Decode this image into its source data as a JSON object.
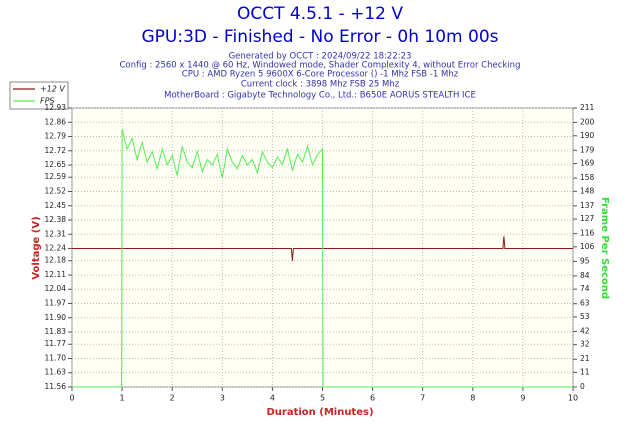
{
  "chart_data": {
    "type": "line",
    "title": "OCCT 4.5.1 - +12 V",
    "subtitle": "GPU:3D - Finished - No Error - 0h 10m 00s",
    "info": [
      "Generated by OCCT : 2024/09/22 18:22:23",
      "Config : 2560 x 1440 @ 60 Hz, Windowed mode, Shader Complexity 4, without Error Checking",
      "CPU : AMD Ryzen 5 9600X 6-Core Processor () -1 Mhz FSB -1 Mhz",
      "Current clock : 3898 Mhz FSB 25 Mhz",
      "MotherBoard : Gigabyte Technology Co., Ltd.: B650E AORUS STEALTH ICE"
    ],
    "xlabel": "Duration (Minutes)",
    "ylabel": "Voltage (V)",
    "y2label": "Frame Per Second",
    "xlim": [
      0,
      10
    ],
    "xticks": [
      0,
      1,
      2,
      3,
      4,
      5,
      6,
      7,
      8,
      9,
      10
    ],
    "ylim": [
      11.56,
      12.93
    ],
    "yticks": [
      11.56,
      11.63,
      {
        "value": 11.7,
        "label": "11.70"
      },
      11.77,
      11.83,
      {
        "value": 11.9,
        "label": "11.90"
      },
      11.97,
      12.04,
      12.11,
      12.18,
      12.24,
      12.31,
      12.38,
      12.45,
      12.52,
      12.59,
      12.65,
      12.72,
      12.79,
      12.86,
      12.93
    ],
    "y2lim": [
      0,
      211
    ],
    "y2ticks": [
      0,
      11,
      21,
      32,
      42,
      53,
      63,
      74,
      84,
      95,
      106,
      116,
      127,
      137,
      148,
      158,
      169,
      179,
      190,
      200,
      211
    ],
    "grid": true,
    "legend": "top-left",
    "series": [
      {
        "name": "+12 V",
        "color": "#8b1a1a",
        "x": [
          0,
          4.38,
          4.4,
          4.42,
          8.6,
          8.62,
          8.64,
          10
        ],
        "values": [
          12.24,
          12.24,
          12.18,
          12.24,
          12.24,
          12.3,
          12.24,
          12.24
        ]
      },
      {
        "name": "FPS",
        "color": "#55ee55",
        "axis": "y2",
        "x": [
          0,
          0.99,
          1.0,
          1.1,
          1.2,
          1.3,
          1.4,
          1.5,
          1.6,
          1.7,
          1.8,
          1.9,
          2.0,
          2.1,
          2.2,
          2.3,
          2.4,
          2.5,
          2.6,
          2.7,
          2.8,
          2.9,
          3.0,
          3.1,
          3.2,
          3.3,
          3.4,
          3.5,
          3.6,
          3.7,
          3.8,
          3.9,
          4.0,
          4.1,
          4.2,
          4.3,
          4.4,
          4.5,
          4.6,
          4.7,
          4.8,
          4.9,
          5.0,
          5.01,
          10
        ],
        "values": [
          0,
          0,
          195,
          180,
          188,
          172,
          185,
          170,
          178,
          165,
          180,
          168,
          175,
          160,
          182,
          170,
          166,
          178,
          163,
          172,
          168,
          176,
          158,
          180,
          170,
          165,
          175,
          168,
          172,
          162,
          178,
          170,
          166,
          174,
          168,
          180,
          164,
          176,
          170,
          182,
          168,
          176,
          180,
          0,
          0
        ]
      }
    ]
  }
}
